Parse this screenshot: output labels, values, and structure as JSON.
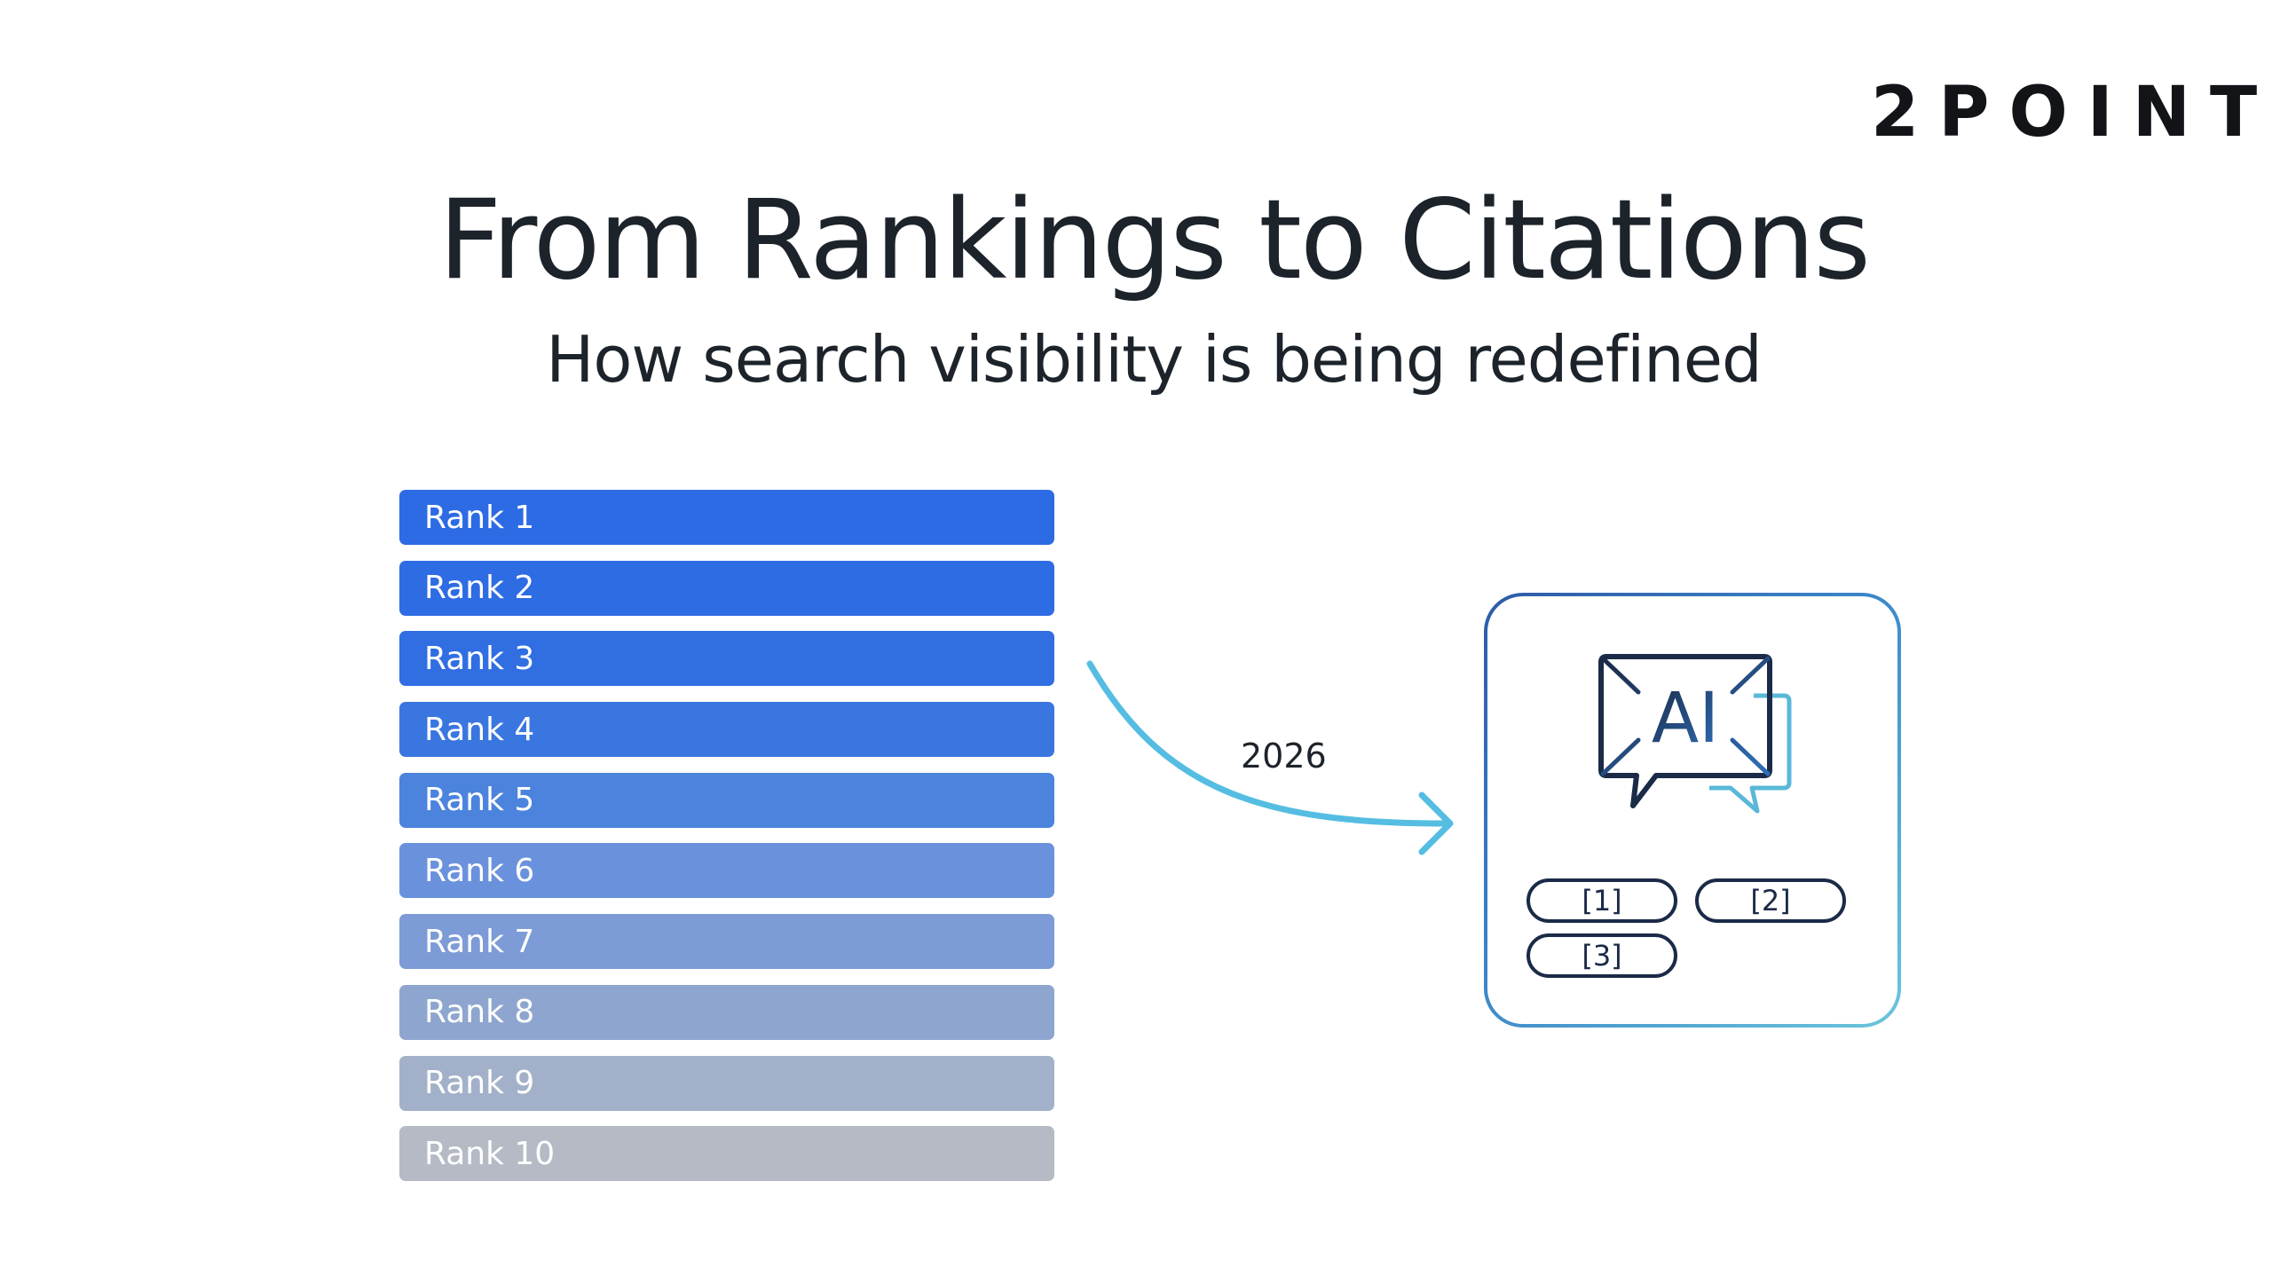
{
  "brand": {
    "logo_text": "2POINT"
  },
  "header": {
    "title": "From Rankings to Citations",
    "subtitle": "How search visibility is being redefined"
  },
  "rankings": [
    {
      "label": "Rank 1",
      "color": "#2d6be4"
    },
    {
      "label": "Rank 2",
      "color": "#2e6ce3"
    },
    {
      "label": "Rank 3",
      "color": "#306ee2"
    },
    {
      "label": "Rank 4",
      "color": "#3a76e0"
    },
    {
      "label": "Rank 5",
      "color": "#4b83dd"
    },
    {
      "label": "Rank 6",
      "color": "#6a92dc"
    },
    {
      "label": "Rank 7",
      "color": "#7d9bd6"
    },
    {
      "label": "Rank 8",
      "color": "#8ea6cf"
    },
    {
      "label": "Rank 9",
      "color": "#a2b1c9"
    },
    {
      "label": "Rank 10",
      "color": "#b5bac5"
    }
  ],
  "transition": {
    "year_label": "2026",
    "arrow_color": "#56bde2"
  },
  "ai_panel": {
    "icon_name": "ai-chat-icon",
    "icon_text": "AI",
    "primary_color": "#1b2a47",
    "accent_color": "#5ab8d8",
    "citations": [
      "[1]",
      "[2]",
      "[3]"
    ]
  }
}
